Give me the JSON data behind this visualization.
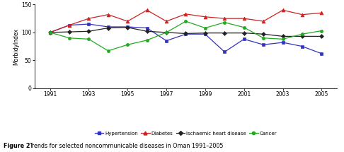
{
  "years": [
    1991,
    1992,
    1993,
    1994,
    1995,
    1996,
    1997,
    1998,
    1999,
    2000,
    2001,
    2002,
    2003,
    2004,
    2005
  ],
  "hypertension": [
    100,
    113,
    115,
    110,
    110,
    108,
    85,
    97,
    97,
    65,
    88,
    78,
    82,
    75,
    62
  ],
  "diabetes": [
    100,
    113,
    125,
    132,
    120,
    140,
    120,
    133,
    128,
    125,
    125,
    120,
    140,
    132,
    135
  ],
  "ischaemic": [
    100,
    101,
    102,
    108,
    109,
    102,
    100,
    98,
    99,
    99,
    99,
    97,
    93,
    93,
    93
  ],
  "cancer": [
    100,
    90,
    88,
    67,
    78,
    86,
    100,
    120,
    108,
    118,
    109,
    90,
    88,
    97,
    103
  ],
  "colors": {
    "hypertension": "#3333bb",
    "diabetes": "#cc2222",
    "ischaemic": "#222222",
    "cancer": "#22aa22"
  },
  "ylabel": "MorbidyIndex",
  "ylim": [
    0,
    150
  ],
  "yticks": [
    0,
    50,
    100,
    150
  ],
  "xticks": [
    1991,
    1993,
    1995,
    1997,
    1999,
    2001,
    2003,
    2005
  ],
  "caption_bold": "Figure 2",
  "caption_normal": "Trends for selected noncommunicable diseases in Oman 1991–2005",
  "legend_labels": [
    "Hypertension",
    "Diabetes",
    "Ischaemic heart disease",
    "Cancer"
  ],
  "background_color": "#ffffff"
}
